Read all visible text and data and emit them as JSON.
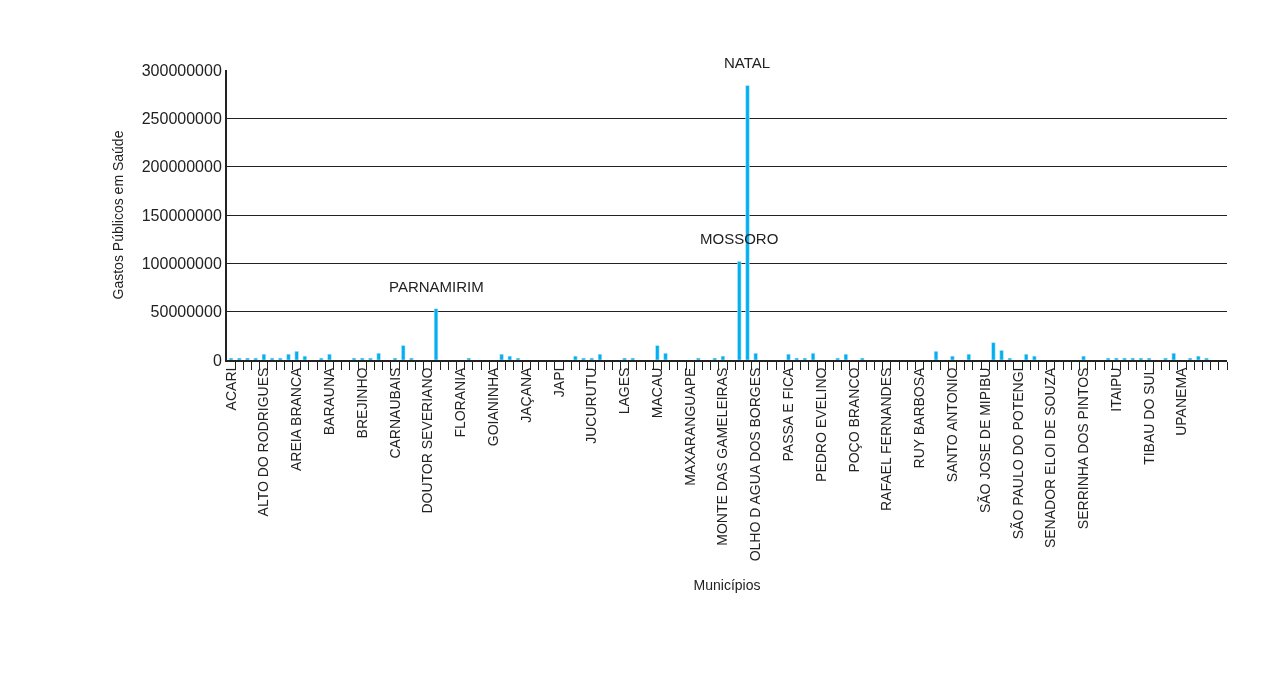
{
  "chart_data": {
    "type": "bar",
    "xlabel": "Municípios",
    "ylabel": "Gastos Públicos em Saúde",
    "categories": [
      "ACARI",
      null,
      null,
      null,
      "ALTO DO RODRIGUES",
      null,
      null,
      null,
      "AREIA BRANCA",
      null,
      null,
      null,
      "BARAUNA",
      null,
      null,
      null,
      "BREJINHO",
      null,
      null,
      null,
      "CARNAUBAIS",
      null,
      null,
      null,
      "DOUTOR SEVERIANO",
      null,
      null,
      null,
      "FLORANIA",
      null,
      null,
      null,
      "GOIANINHA",
      null,
      null,
      null,
      "JAÇANA",
      null,
      null,
      null,
      "JAPI",
      null,
      null,
      null,
      "JUCURUTU",
      null,
      null,
      null,
      "LAGES",
      null,
      null,
      null,
      "MACAU",
      null,
      null,
      null,
      "MAXARANGUAPE",
      null,
      null,
      null,
      "MONTE DAS GAMELEIRAS",
      null,
      null,
      null,
      "OLHO D AGUA DOS BORGES",
      null,
      null,
      null,
      "PASSA E FICA",
      null,
      null,
      null,
      "PEDRO EVELINO",
      null,
      null,
      null,
      "POÇO BRANCO",
      null,
      null,
      null,
      "RAFAEL FERNANDES",
      null,
      null,
      null,
      "RUY BARBOSA",
      null,
      null,
      null,
      "SANTO ANTONIO",
      null,
      null,
      null,
      "SÃO JOSE DE MIPIBU",
      null,
      null,
      null,
      "SÃO PAULO DO POTENGI",
      null,
      null,
      null,
      "SENADOR ELOI DE SOUZA",
      null,
      null,
      null,
      "SERRINHA DOS PINTOS",
      null,
      null,
      null,
      "ITAIPU",
      null,
      null,
      null,
      "TIBAU DO SUL",
      null,
      null,
      null,
      "UPANEMA",
      null,
      null,
      null,
      null,
      null
    ],
    "values": [
      2000000,
      2000000,
      2000000,
      2000000,
      6000000,
      2000000,
      2000000,
      6000000,
      9000000,
      4000000,
      null,
      2000000,
      6000000,
      null,
      null,
      2000000,
      2000000,
      2000000,
      7000000,
      null,
      2000000,
      15000000,
      2000000,
      null,
      null,
      53000000,
      null,
      null,
      null,
      2000000,
      null,
      null,
      null,
      6000000,
      4000000,
      2000000,
      null,
      null,
      null,
      null,
      null,
      null,
      4000000,
      2000000,
      2000000,
      6000000,
      null,
      null,
      2000000,
      2000000,
      null,
      null,
      15000000,
      7000000,
      null,
      null,
      null,
      2000000,
      null,
      2000000,
      4000000,
      null,
      102000000,
      284000000,
      7000000,
      null,
      null,
      null,
      6000000,
      2000000,
      2000000,
      7000000,
      null,
      null,
      2000000,
      6000000,
      null,
      2000000,
      null,
      null,
      null,
      null,
      null,
      null,
      null,
      null,
      9000000,
      null,
      4000000,
      null,
      6000000,
      null,
      null,
      18000000,
      10000000,
      2000000,
      null,
      6000000,
      4000000,
      null,
      null,
      null,
      null,
      null,
      4000000,
      null,
      null,
      2000000,
      2000000,
      2000000,
      2000000,
      2000000,
      2000000,
      null,
      2000000,
      7000000,
      null,
      2000000,
      4000000,
      2000000,
      null,
      null
    ],
    "value_labels": [
      null,
      null,
      null,
      null,
      null,
      null,
      null,
      null,
      null,
      null,
      null,
      null,
      null,
      null,
      null,
      null,
      null,
      null,
      null,
      null,
      null,
      null,
      null,
      null,
      null,
      "PARNAMIRIM",
      null,
      null,
      null,
      null,
      null,
      null,
      null,
      null,
      null,
      null,
      null,
      null,
      null,
      null,
      null,
      null,
      null,
      null,
      null,
      null,
      null,
      null,
      null,
      null,
      null,
      null,
      null,
      null,
      null,
      null,
      null,
      null,
      null,
      null,
      null,
      null,
      "MOSSORO",
      "NATAL",
      null,
      null,
      null,
      null,
      null,
      null,
      null,
      null,
      null,
      null,
      null,
      null,
      null,
      null,
      null,
      null,
      null,
      null,
      null,
      null,
      null,
      null,
      null,
      null,
      null,
      null,
      null,
      null,
      null,
      null,
      null,
      null,
      null,
      null,
      null,
      null,
      null,
      null,
      null,
      null,
      null,
      null,
      null,
      null,
      null,
      null,
      null,
      null,
      null,
      null,
      null,
      null,
      null,
      null,
      null,
      null,
      null,
      null
    ],
    "color": "#00b0f0",
    "ylim": [
      0,
      300000000
    ],
    "yticks": [
      0,
      50000000,
      100000000,
      150000000,
      200000000,
      250000000,
      300000000
    ],
    "grid": "y",
    "legend": false
  }
}
